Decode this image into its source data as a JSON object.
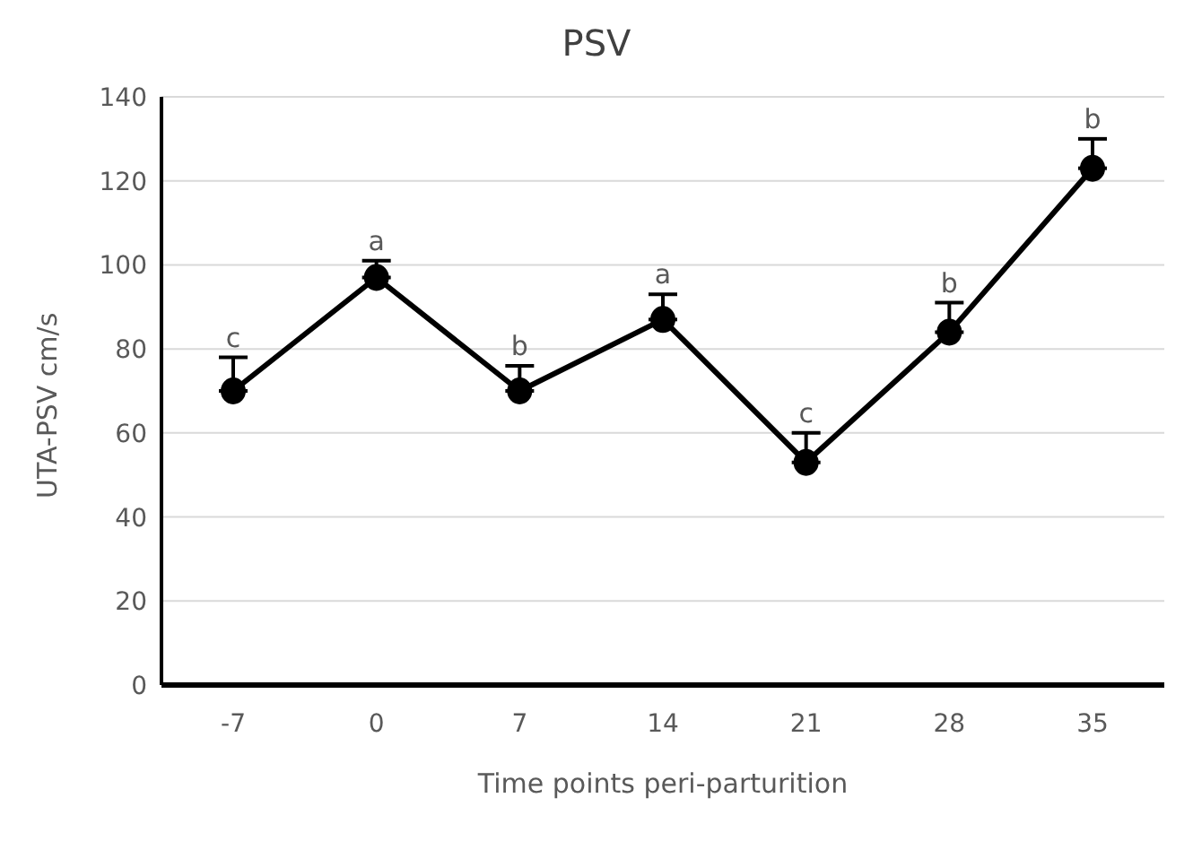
{
  "chart_data": {
    "type": "line",
    "title": "PSV",
    "xlabel": "Time points peri-parturition",
    "ylabel": "UTA-PSV cm/s",
    "categories": [
      "-7",
      "0",
      "7",
      "14",
      "21",
      "28",
      "35"
    ],
    "series": [
      {
        "color": "#000000",
        "values": [
          70,
          97,
          70,
          87,
          53,
          84,
          123
        ],
        "errors": [
          [
            70,
            78
          ],
          [
            97,
            101
          ],
          [
            70,
            76
          ],
          [
            87,
            93
          ],
          [
            53,
            60
          ],
          [
            84,
            91
          ],
          [
            123,
            130
          ]
        ]
      }
    ],
    "ylim": [
      0,
      140
    ],
    "yticks": [
      0,
      20,
      40,
      60,
      80,
      100,
      120,
      140
    ],
    "grid": "y",
    "legend": false,
    "marker": "circle",
    "line_style": "solid",
    "annotations": [
      {
        "text": "c",
        "x": "-7",
        "y": 78
      },
      {
        "text": "a",
        "x": "0",
        "y": 101
      },
      {
        "text": "b",
        "x": "7",
        "y": 76
      },
      {
        "text": "a",
        "x": "14",
        "y": 93
      },
      {
        "text": "c",
        "x": "21",
        "y": 60
      },
      {
        "text": "b",
        "x": "28",
        "y": 91
      },
      {
        "text": "b",
        "x": "35",
        "y": 130
      }
    ]
  }
}
